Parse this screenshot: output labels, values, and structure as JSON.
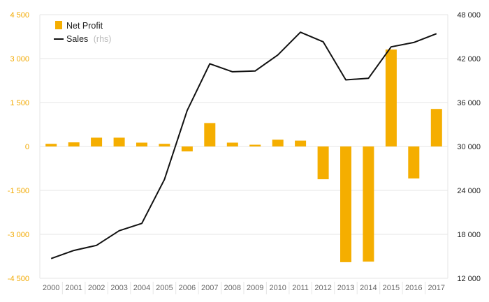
{
  "chart_data": {
    "type": "bar+line",
    "categories": [
      "2000",
      "2001",
      "2002",
      "2003",
      "2004",
      "2005",
      "2006",
      "2007",
      "2008",
      "2009",
      "2010",
      "2011",
      "2012",
      "2013",
      "2014",
      "2015",
      "2016",
      "2017"
    ],
    "series": [
      {
        "name": "Net Profit",
        "type": "bar",
        "axis": "left",
        "color": "#f5ae00",
        "values": [
          90,
          140,
          300,
          300,
          130,
          90,
          -170,
          800,
          130,
          60,
          230,
          200,
          -1120,
          -3950,
          -3930,
          3310,
          -1090,
          1280
        ]
      },
      {
        "name": "Sales",
        "name_suffix": "(rhs)",
        "type": "line",
        "axis": "right",
        "color": "#111111",
        "values": [
          14700,
          15800,
          16500,
          18500,
          19500,
          25500,
          34900,
          41300,
          40200,
          40300,
          42500,
          45600,
          44300,
          39100,
          39300,
          43600,
          44200,
          45400
        ]
      }
    ],
    "y_left": {
      "ylim": [
        -4500,
        4500
      ],
      "ticks": [
        -4500,
        -3000,
        -1500,
        0,
        1500,
        3000,
        4500
      ],
      "tick_labels": [
        "-4 500",
        "-3 000",
        "-1 500",
        "0",
        "1 500",
        "3 000",
        "4 500"
      ],
      "color": "#f2a900"
    },
    "y_right": {
      "ylim": [
        12000,
        48000
      ],
      "ticks": [
        12000,
        18000,
        24000,
        30000,
        36000,
        42000,
        48000
      ],
      "tick_labels": [
        "12 000",
        "18 000",
        "24 000",
        "30 000",
        "36 000",
        "42 000",
        "48 000"
      ],
      "color": "#222222"
    },
    "grid": true,
    "legend_position": "top-left"
  }
}
